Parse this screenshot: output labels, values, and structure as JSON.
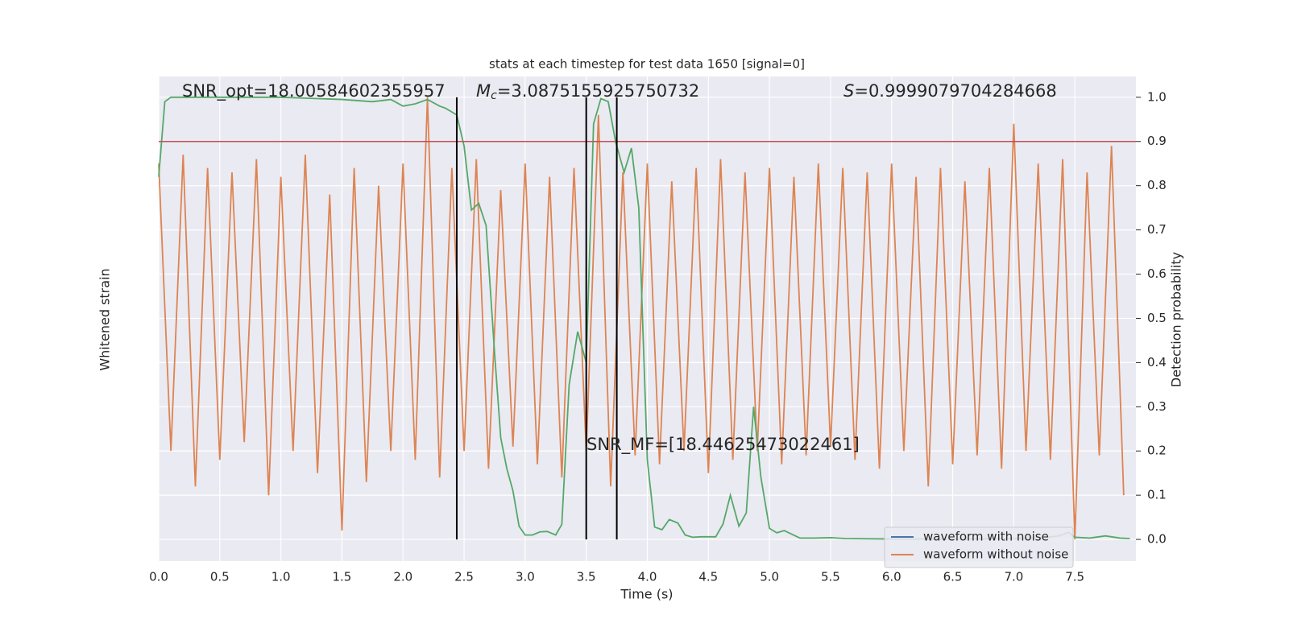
{
  "chart_data": {
    "type": "line",
    "title": "stats at each timestep for test data 1650 [signal=0]",
    "xlabel": "Time (s)",
    "ylabel": "Whitened strain",
    "y2label": "Detection probability",
    "xlim": [
      0,
      8.0
    ],
    "xticks": [
      0.0,
      0.5,
      1.0,
      1.5,
      2.0,
      2.5,
      3.0,
      3.5,
      4.0,
      4.5,
      5.0,
      5.5,
      6.0,
      6.5,
      7.0,
      7.5
    ],
    "ylim": [
      -0.049,
      1.047
    ],
    "y2lim": [
      -0.049,
      1.047
    ],
    "y2ticks": [
      0.0,
      0.1,
      0.2,
      0.3,
      0.4,
      0.5,
      0.6,
      0.7,
      0.8,
      0.9,
      1.0
    ],
    "grid": true,
    "legend": "lower right",
    "series": [
      {
        "name": "waveform with noise",
        "color": "#4c72b0"
      },
      {
        "name": "waveform without noise",
        "color": "#dd8452",
        "x": [
          0,
          0.1,
          0.2,
          0.3,
          0.4,
          0.5,
          0.6,
          0.7,
          0.8,
          0.9,
          1.0,
          1.1,
          1.2,
          1.3,
          1.4,
          1.5,
          1.6,
          1.7,
          1.8,
          1.9,
          2.0,
          2.1,
          2.2,
          2.3,
          2.4,
          2.5,
          2.6,
          2.7,
          2.8,
          2.9,
          3.0,
          3.1,
          3.2,
          3.3,
          3.4,
          3.5,
          3.6,
          3.7,
          3.8,
          3.9,
          4.0,
          4.1,
          4.2,
          4.3,
          4.4,
          4.5,
          4.6,
          4.7,
          4.8,
          4.9,
          5.0,
          5.1,
          5.2,
          5.3,
          5.4,
          5.5,
          5.6,
          5.7,
          5.8,
          5.9,
          6.0,
          6.1,
          6.2,
          6.3,
          6.4,
          6.5,
          6.6,
          6.7,
          6.8,
          6.9,
          7.0,
          7.1,
          7.2,
          7.3,
          7.4,
          7.5,
          7.6,
          7.7,
          7.8,
          7.9
        ],
        "values": [
          0.85,
          0.2,
          0.87,
          0.12,
          0.84,
          0.18,
          0.83,
          0.22,
          0.86,
          0.1,
          0.82,
          0.2,
          0.87,
          0.15,
          0.78,
          0.02,
          0.84,
          0.13,
          0.8,
          0.2,
          0.85,
          0.18,
          1.0,
          0.14,
          0.84,
          0.2,
          0.86,
          0.16,
          0.79,
          0.21,
          0.85,
          0.17,
          0.82,
          0.14,
          0.84,
          0.2,
          0.96,
          0.12,
          0.83,
          0.19,
          0.85,
          0.17,
          0.81,
          0.2,
          0.84,
          0.15,
          0.86,
          0.18,
          0.83,
          0.2,
          0.84,
          0.17,
          0.82,
          0.19,
          0.85,
          0.21,
          0.84,
          0.18,
          0.83,
          0.16,
          0.85,
          0.2,
          0.82,
          0.12,
          0.84,
          0.17,
          0.81,
          0.19,
          0.84,
          0.16,
          0.94,
          0.2,
          0.85,
          0.18,
          0.86,
          0.0,
          0.83,
          0.19,
          0.89,
          0.1
        ]
      },
      {
        "color": "#55a868",
        "axis": "y2",
        "x": [
          0,
          0.05,
          0.1,
          0.5,
          1.0,
          1.5,
          1.75,
          1.9,
          2.0,
          2.1,
          2.2,
          2.3,
          2.35,
          2.44,
          2.5,
          2.56,
          2.62,
          2.68,
          2.75,
          2.8,
          2.85,
          2.9,
          2.95,
          3.0,
          3.06,
          3.12,
          3.18,
          3.25,
          3.3,
          3.36,
          3.43,
          3.5,
          3.56,
          3.62,
          3.68,
          3.74,
          3.81,
          3.87,
          3.93,
          4.0,
          4.06,
          4.12,
          4.18,
          4.25,
          4.31,
          4.37,
          4.44,
          4.5,
          4.56,
          4.62,
          4.68,
          4.75,
          4.81,
          4.87,
          4.93,
          5.0,
          5.06,
          5.12,
          5.25,
          5.37,
          5.5,
          5.62,
          6.0,
          6.5,
          7.0,
          7.25,
          7.37,
          7.45,
          7.5,
          7.62,
          7.75,
          7.87,
          7.95
        ],
        "values": [
          0.82,
          0.99,
          1.0,
          1.0,
          1.0,
          0.995,
          0.99,
          0.995,
          0.98,
          0.985,
          0.995,
          0.98,
          0.975,
          0.96,
          0.89,
          0.745,
          0.76,
          0.71,
          0.42,
          0.23,
          0.16,
          0.11,
          0.03,
          0.01,
          0.01,
          0.017,
          0.018,
          0.01,
          0.034,
          0.35,
          0.47,
          0.4,
          0.94,
          0.997,
          0.99,
          0.9,
          0.83,
          0.885,
          0.75,
          0.18,
          0.028,
          0.022,
          0.045,
          0.037,
          0.01,
          0.005,
          0.006,
          0.006,
          0.006,
          0.035,
          0.1,
          0.03,
          0.06,
          0.3,
          0.14,
          0.025,
          0.015,
          0.02,
          0.003,
          0.003,
          0.004,
          0.002,
          0.001,
          0.001,
          0.002,
          0.004,
          0.008,
          0.016,
          0.005,
          0.003,
          0.008,
          0.003,
          0.002
        ]
      }
    ],
    "hline": {
      "value": 0.9,
      "color": "#c44e52"
    },
    "vlines": {
      "values": [
        2.44,
        3.5,
        3.75
      ],
      "color": "#000000"
    },
    "annotations": [
      {
        "text": "SNR_opt=18.00584602355957"
      },
      {
        "symbol": "M",
        "subscript": "c",
        "text": "=3.0875155925750732"
      },
      {
        "symbol": "S",
        "text": "=0.9999079704284668"
      },
      {
        "text": "SNR_MF=[18.44625473022461]"
      }
    ]
  }
}
